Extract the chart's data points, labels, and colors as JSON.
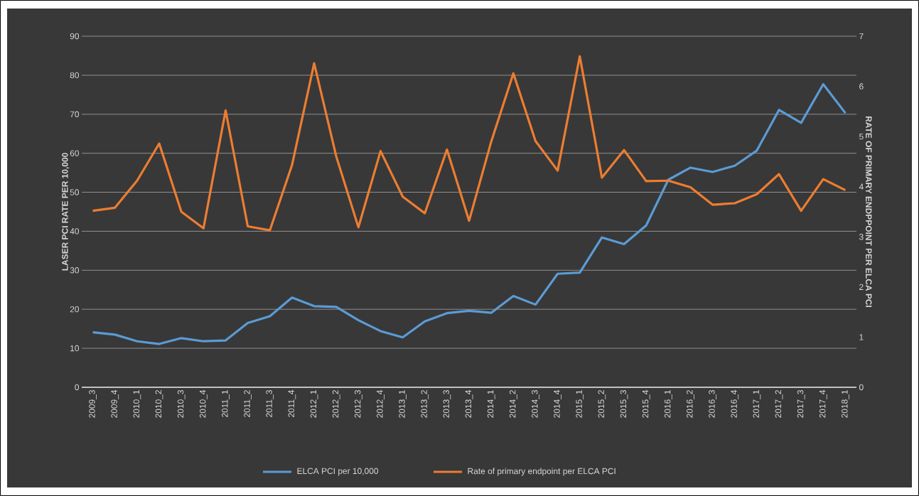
{
  "chart_data": {
    "type": "line",
    "categories": [
      "2009_3",
      "2009_4",
      "2010_1",
      "2010_2",
      "2010_3",
      "2010_4",
      "2011_1",
      "2011_2",
      "2011_3",
      "2011_4",
      "2012_1",
      "2012_2",
      "2012_3",
      "2012_4",
      "2013_1",
      "2013_2",
      "2013_3",
      "2013_4",
      "2014_1",
      "2014_2",
      "2014_3",
      "2014_4",
      "2015_1",
      "2015_2",
      "2015_3",
      "2015_4",
      "2016_1",
      "2016_2",
      "2016_3",
      "2016_4",
      "2017_1",
      "2017_2",
      "2017_3",
      "2017_4",
      "2018_1"
    ],
    "series": [
      {
        "name": "ELCA PCI per 10,000",
        "color": "#5b9bd5",
        "values": [
          14.1,
          13.5,
          11.8,
          11.1,
          12.6,
          11.8,
          12.0,
          16.5,
          18.2,
          23,
          20.8,
          20.6,
          17.2,
          14.4,
          12.8,
          16.9,
          19,
          19.6,
          19.1,
          23.4,
          21.2,
          29.1,
          29.4,
          38.4,
          36.7,
          41.5,
          53.2,
          56.3,
          55.2,
          56.8,
          60.7,
          71.1,
          67.8,
          77.7,
          70.3
        ]
      },
      {
        "name": "Rate of primary endpoint per ELCA PCI",
        "color": "#ed7d31",
        "axis": "y2",
        "values": [
          3.52,
          3.58,
          4.12,
          4.86,
          3.5,
          3.17,
          5.52,
          3.21,
          3.13,
          4.43,
          6.46,
          4.6,
          3.19,
          4.71,
          3.8,
          3.47,
          4.74,
          3.32,
          4.9,
          6.26,
          4.91,
          4.32,
          6.6,
          4.18,
          4.73,
          4.11,
          4.12,
          3.99,
          3.64,
          3.67,
          3.85,
          4.25,
          3.52,
          4.15,
          3.93
        ]
      }
    ],
    "ylabel": "LASER PCI RATE PER 10,000",
    "y2label": "RATE OF PRIMARY ENDPPOINT PER ELCA PCI",
    "ylim": [
      0,
      90
    ],
    "yticks": [
      0,
      10,
      20,
      30,
      40,
      50,
      60,
      70,
      80,
      90
    ],
    "y2lim": [
      0,
      7
    ],
    "y2ticks": [
      0,
      1,
      2,
      3,
      4,
      5,
      6,
      7
    ],
    "grid": "y",
    "legend": "bottom",
    "marker": "none",
    "line_style": "solid"
  }
}
